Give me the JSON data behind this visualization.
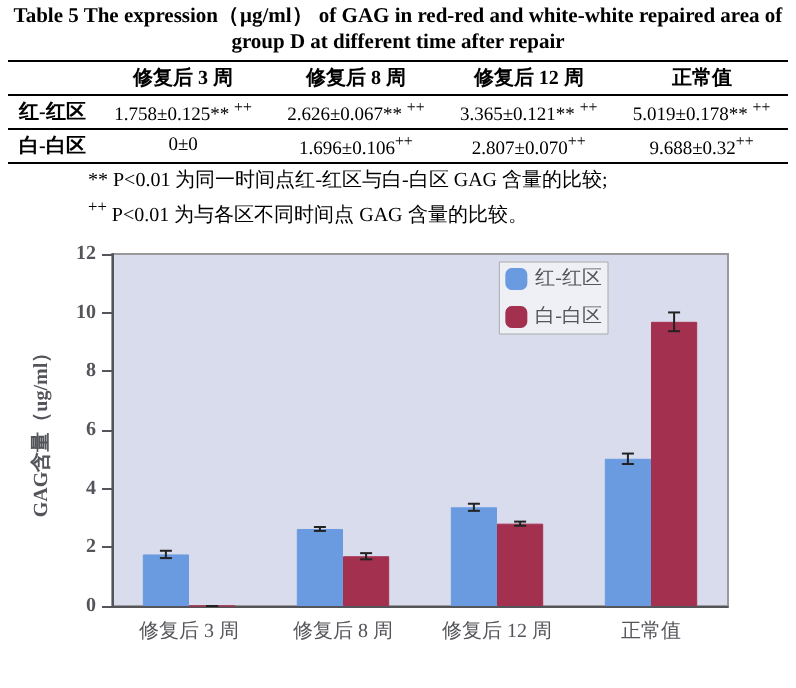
{
  "chart_data": {
    "type": "bar",
    "title": "Table 5 The expression（μg/ml） of GAG in red-red and white-white repaired area of group D at different time after repair",
    "categories": [
      "修复后 3 周",
      "修复后 8 周",
      "修复后 12 周",
      "正常值"
    ],
    "series": [
      {
        "name": "红-红区",
        "color": "#6a9be0",
        "values": [
          1.758,
          2.626,
          3.365,
          5.019
        ],
        "errors": [
          0.125,
          0.067,
          0.121,
          0.178
        ],
        "value_labels": [
          "1.758±0.125** $^{++}$",
          "2.626±0.067** $^{++}$",
          "3.365±0.121** $^{++}$",
          "5.019±0.178** $^{++}$"
        ]
      },
      {
        "name": "白-白区",
        "color": "#a3304f",
        "values": [
          0,
          1.696,
          2.807,
          9.688
        ],
        "errors": [
          0,
          0.106,
          0.07,
          0.32
        ],
        "value_labels": [
          "0±0",
          "1.696±0.106$^{++}$",
          "2.807±0.070$^{++}$",
          "9.688±0.32$^{++}$"
        ]
      }
    ],
    "annotations": [
      "** P<0.01 为同一时间点红-红区与白-白区 GAG 含量的比较;",
      "$^{++}$ P<0.01 为与各区不同时间点 GAG 含量的比较。"
    ],
    "ylabel": "GAG含量（ug/ml）",
    "ylim": [
      0,
      12
    ],
    "yticks": [
      0,
      2,
      4,
      6,
      8,
      10,
      12
    ],
    "legend": "top right"
  }
}
